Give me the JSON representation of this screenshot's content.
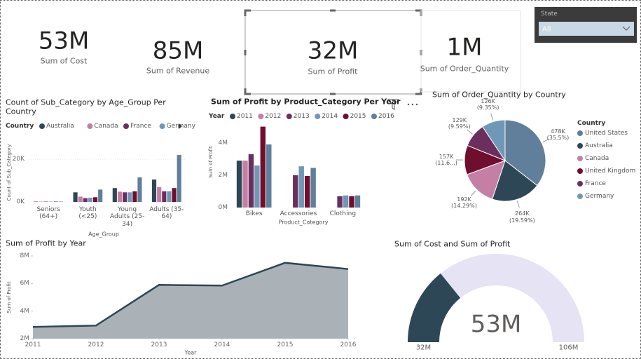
{
  "cards": [
    {
      "value": "53M",
      "label": "Sum of Cost"
    },
    {
      "value": "85M",
      "label": "Sum of Revenue"
    },
    {
      "value": "32M",
      "label": "Sum of Profit"
    },
    {
      "value": "1M",
      "label": "Sum of Order_Quantity"
    }
  ],
  "slicer": {
    "label": "State",
    "value": "All"
  },
  "chart_data": [
    {
      "type": "bar",
      "title": "Count of Sub_Category by Age_Group Per Country",
      "legend_title": "Country",
      "x_label": "Age_Group",
      "y_label": "Count of Sub_Category",
      "categories": [
        "Seniors (64+)",
        "Youth (<25)",
        "Young Adults (25-34)",
        "Adults (35-64)"
      ],
      "series": [
        {
          "name": "Australia",
          "color": "#2e4756",
          "values": [
            150,
            4500,
            6500,
            10500
          ]
        },
        {
          "name": "Canada",
          "color": "#c47fa5",
          "values": [
            150,
            2500,
            4800,
            7000
          ]
        },
        {
          "name": "France",
          "color": "#6a2f5e",
          "values": [
            150,
            1800,
            4500,
            5000
          ]
        },
        {
          "name": "Germany",
          "color": "#7197b8",
          "values": [
            150,
            2000,
            4500,
            5000
          ]
        },
        {
          "name": null,
          "color": "#700e2e",
          "values": [
            150,
            2200,
            5000,
            6500
          ]
        },
        {
          "name": null,
          "color": "#5f7f9a",
          "values": [
            150,
            5800,
            11500,
            22000
          ]
        }
      ],
      "ylim": [
        0,
        24000
      ],
      "yticks": [
        {
          "value": 0,
          "label": "0K"
        },
        {
          "value": 20000,
          "label": "20K"
        }
      ],
      "grid": true
    },
    {
      "type": "bar",
      "title": "Sum of Profit by Product_Category Per Year",
      "legend_title": "Year",
      "x_label": "Product_Category",
      "y_label": "Sum of Profit",
      "categories": [
        "Bikes",
        "Accessories",
        "Clothing"
      ],
      "series": [
        {
          "name": "2011",
          "color": "#2e4756",
          "values": [
            2900000,
            null,
            null
          ]
        },
        {
          "name": "2012",
          "color": "#c47fa5",
          "values": [
            2900000,
            null,
            null
          ]
        },
        {
          "name": "2013",
          "color": "#6a2f5e",
          "values": [
            3300000,
            2000000,
            700000
          ]
        },
        {
          "name": "2014",
          "color": "#7197b8",
          "values": [
            2600000,
            2550000,
            750000
          ]
        },
        {
          "name": "2015",
          "color": "#700e2e",
          "values": [
            5000000,
            1950000,
            700000
          ]
        },
        {
          "name": "2016",
          "color": "#5f7f9a",
          "values": [
            3900000,
            2450000,
            750000
          ]
        }
      ],
      "ylim": [
        0,
        5200000
      ],
      "yticks": [
        {
          "value": 0,
          "label": "0M"
        },
        {
          "value": 2000000,
          "label": "2M"
        },
        {
          "value": 4000000,
          "label": "4M"
        }
      ],
      "grid": false
    },
    {
      "type": "pie",
      "title": "Sum of Order_Quantity by Country",
      "legend_title": "Country",
      "categories": [
        "United States",
        "Australia",
        "Canada",
        "United Kingdom",
        "France",
        "Germany"
      ],
      "values": [
        478000,
        264000,
        192000,
        157000,
        129000,
        126000
      ],
      "value_labels": [
        "478K (35.5%)",
        "264K (19.59%)",
        "192K (14.29%)",
        "157K (11.6...)",
        "129K (9.59%)",
        "126K (9.35%)"
      ],
      "colors": [
        "#5f7f9a",
        "#2e4756",
        "#c47fa5",
        "#700e2e",
        "#6a2f5e",
        "#7197b8"
      ]
    },
    {
      "type": "area",
      "title": "Sum of Profit by Year",
      "x_label": "Year",
      "y_label": "Sum of Profit",
      "x": [
        2011,
        2012,
        2013,
        2014,
        2015,
        2016
      ],
      "values": [
        2850000,
        2950000,
        5900000,
        5850000,
        7500000,
        7050000
      ],
      "color": "#aab2b8",
      "line_color": "#2e4756",
      "xlim": [
        2011,
        2016
      ],
      "xticks": [
        2011,
        2012,
        2013,
        2014,
        2015,
        2016
      ],
      "ylim": [
        2000000,
        8000000
      ],
      "yticks": [
        {
          "value": 2000000,
          "label": "2M"
        },
        {
          "value": 4000000,
          "label": "4M"
        },
        {
          "value": 6000000,
          "label": "6M"
        },
        {
          "value": 8000000,
          "label": "8M"
        }
      ]
    },
    {
      "type": "gauge",
      "title": "Sum of Cost and Sum of Profit",
      "value": 53000000,
      "value_label": "53M",
      "color": "#2e4756",
      "track_color": "#e6e3f5",
      "ylim": [
        32000000,
        106000000
      ],
      "yticks": [
        {
          "value": 32000000,
          "label": "32M"
        },
        {
          "value": 106000000,
          "label": "106M"
        }
      ]
    }
  ]
}
